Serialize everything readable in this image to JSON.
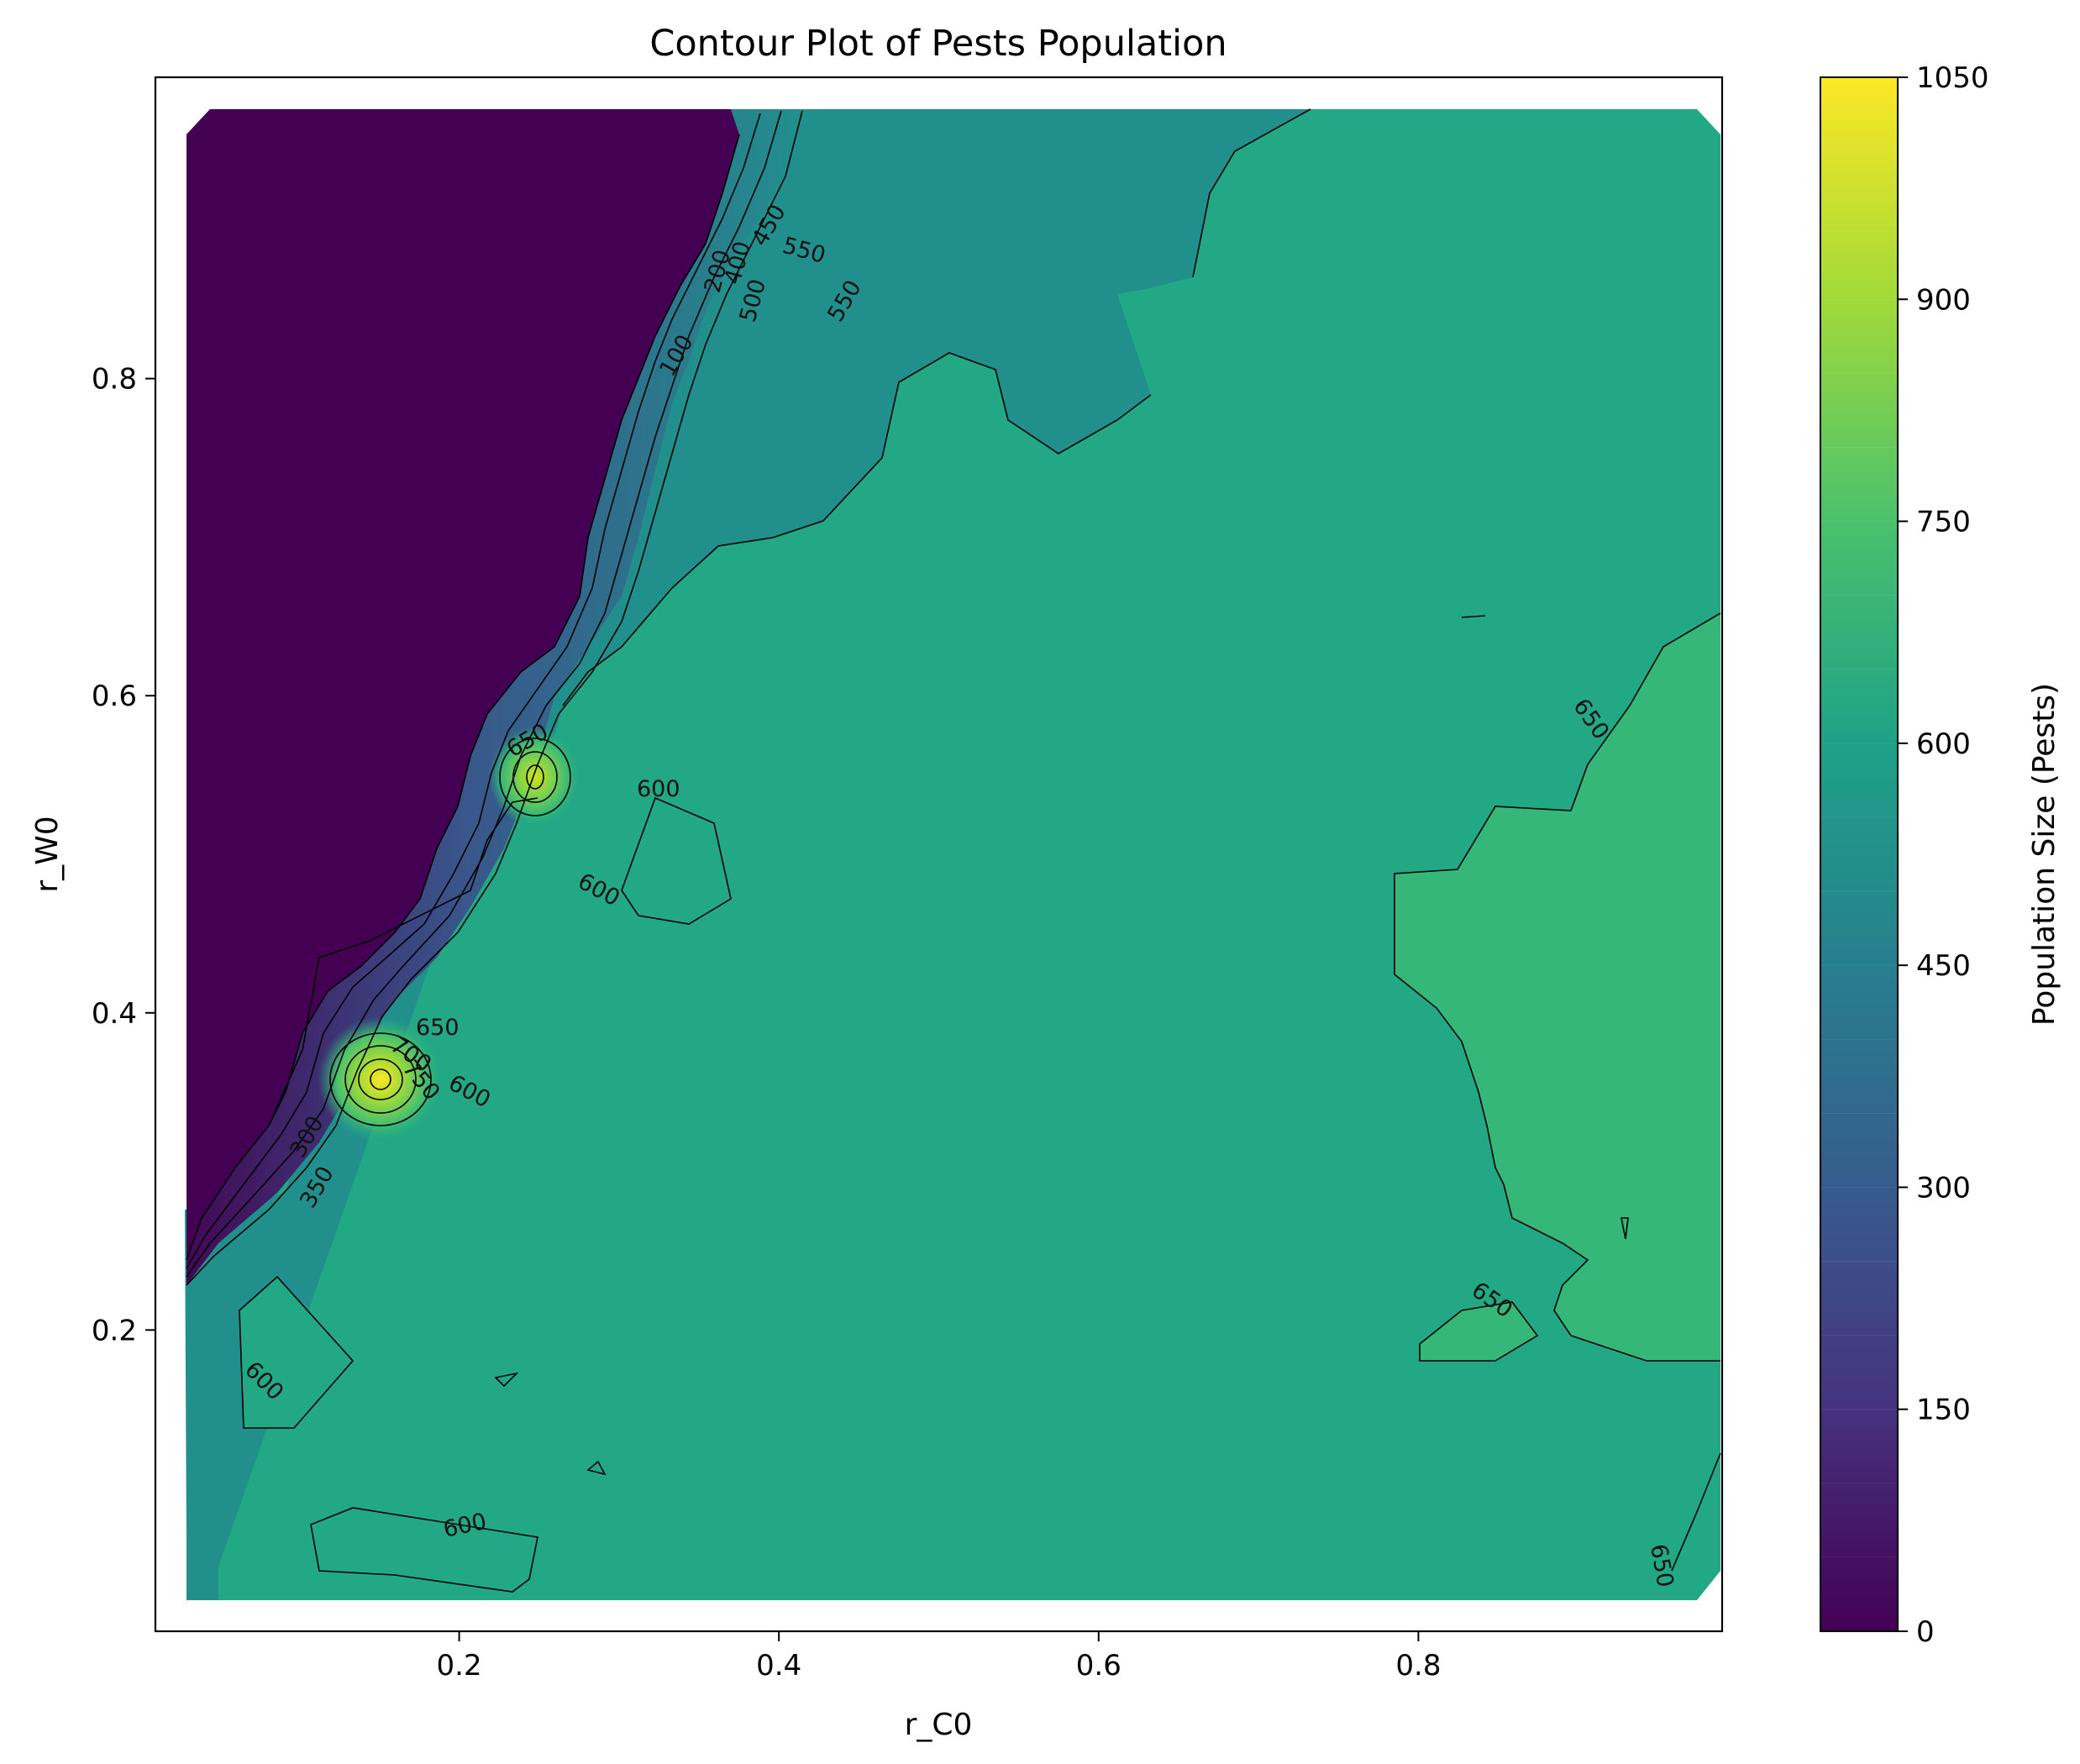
{
  "chart_data": {
    "type": "contour",
    "title": "Contour Plot of Pests Population",
    "xlabel": "r_C0",
    "ylabel": "r_W0",
    "xlim": [
      0.01,
      0.99
    ],
    "ylim": [
      0.01,
      0.99
    ],
    "x_ticks": [
      "0.2",
      "0.4",
      "0.6",
      "0.8"
    ],
    "x_tick_values": [
      0.2,
      0.4,
      0.6,
      0.8
    ],
    "y_ticks": [
      "0.2",
      "0.4",
      "0.6",
      "0.8"
    ],
    "y_tick_values": [
      0.2,
      0.4,
      0.6,
      0.8
    ],
    "colormap": "viridis",
    "levels": [
      0,
      50,
      100,
      150,
      200,
      250,
      300,
      350,
      400,
      450,
      500,
      550,
      600,
      650,
      700,
      750,
      800,
      850,
      900,
      950,
      1000,
      1050
    ],
    "colorbar": {
      "label": "Population Size (Pests)",
      "ticks": [
        "0",
        "150",
        "300",
        "450",
        "600",
        "750",
        "900",
        "1050"
      ],
      "tick_values": [
        0,
        150,
        300,
        450,
        600,
        750,
        900,
        1050
      ],
      "range": [
        0,
        1050
      ]
    },
    "regions": [
      {
        "level": "0–50",
        "color": "#440154",
        "extent": "upper-left band bounded by the steep ridge"
      },
      {
        "level": "550–600",
        "color": "#21908d",
        "extent": "strip right of the ridge and lower-left corner"
      },
      {
        "level": "600–650",
        "color": "#22a884",
        "extent": "most of the domain"
      },
      {
        "level": "650–700",
        "color": "#35b779",
        "extent": "right edge between r_W0 0.2 and 0.66"
      }
    ],
    "peaks": [
      {
        "x": 0.15,
        "y": 0.355,
        "max_level": 1000
      },
      {
        "x": 0.25,
        "y": 0.55,
        "max_level": 900
      }
    ],
    "contour_labels": [
      "100",
      "200",
      "300",
      "350",
      "400",
      "450",
      "500",
      "550",
      "550",
      "600",
      "600",
      "600",
      "600",
      "600",
      "650",
      "650",
      "650",
      "650",
      "650",
      "700",
      "750"
    ],
    "grid": false,
    "colors": {
      "low": "#440154",
      "mid": "#21908d",
      "high": "#fde725",
      "contour_line": "#000000"
    }
  }
}
